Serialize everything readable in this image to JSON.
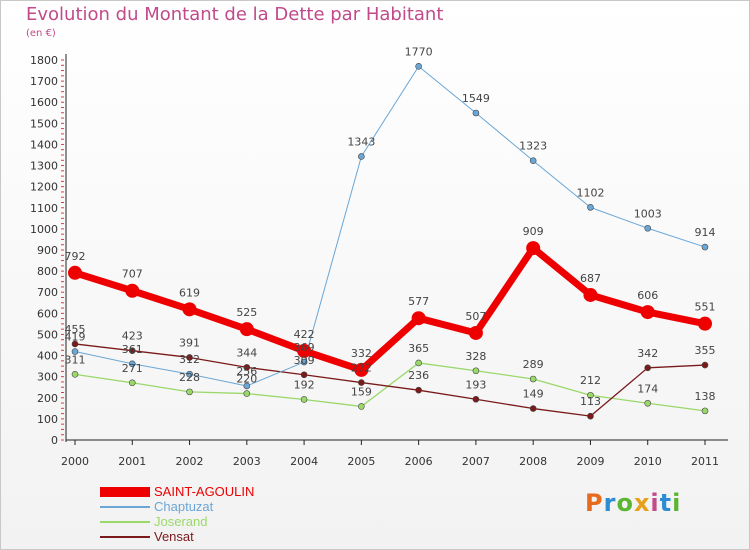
{
  "title": "Evolution du Montant de la Dette par Habitant",
  "subtitle": "(en €)",
  "logo": {
    "text": "Proxiti",
    "letters": [
      "P",
      "r",
      "o",
      "x",
      "i",
      "t",
      "i"
    ],
    "colors": [
      "#e86a1c",
      "#2d8dd3",
      "#5cb531",
      "#e8a01c",
      "#c04a8a",
      "#2d8dd3",
      "#5cb531"
    ]
  },
  "chart_data": {
    "type": "line",
    "x": [
      "2000",
      "2001",
      "2002",
      "2003",
      "2004",
      "2005",
      "2006",
      "2007",
      "2008",
      "2009",
      "2010",
      "2011"
    ],
    "ylim": [
      0,
      1800
    ],
    "yticks": [
      0,
      100,
      200,
      300,
      400,
      500,
      600,
      700,
      800,
      900,
      1000,
      1100,
      1200,
      1300,
      1400,
      1500,
      1600,
      1700,
      1800
    ],
    "grid": false,
    "legend_position": "bottom-left",
    "series": [
      {
        "name": "SAINT-AGOULIN",
        "color": "#ee0000",
        "width": 7,
        "marker": 7,
        "values": [
          792,
          707,
          619,
          525,
          422,
          332,
          577,
          507,
          909,
          687,
          606,
          551
        ]
      },
      {
        "name": "Chaptuzat",
        "color": "#6aa6d6",
        "width": 1,
        "marker": 3,
        "values": [
          419,
          361,
          312,
          256,
          369,
          1343,
          1770,
          1549,
          1323,
          1102,
          1003,
          914
        ]
      },
      {
        "name": "Joserand",
        "color": "#9ad86a",
        "width": 1.3,
        "marker": 3,
        "values": [
          311,
          271,
          228,
          220,
          192,
          159,
          365,
          328,
          289,
          212,
          174,
          138
        ]
      },
      {
        "name": "Vensat",
        "color": "#7a1a1a",
        "width": 1.3,
        "marker": 3,
        "values": [
          455,
          423,
          391,
          344,
          309,
          272,
          236,
          193,
          149,
          113,
          342,
          355
        ]
      }
    ]
  }
}
